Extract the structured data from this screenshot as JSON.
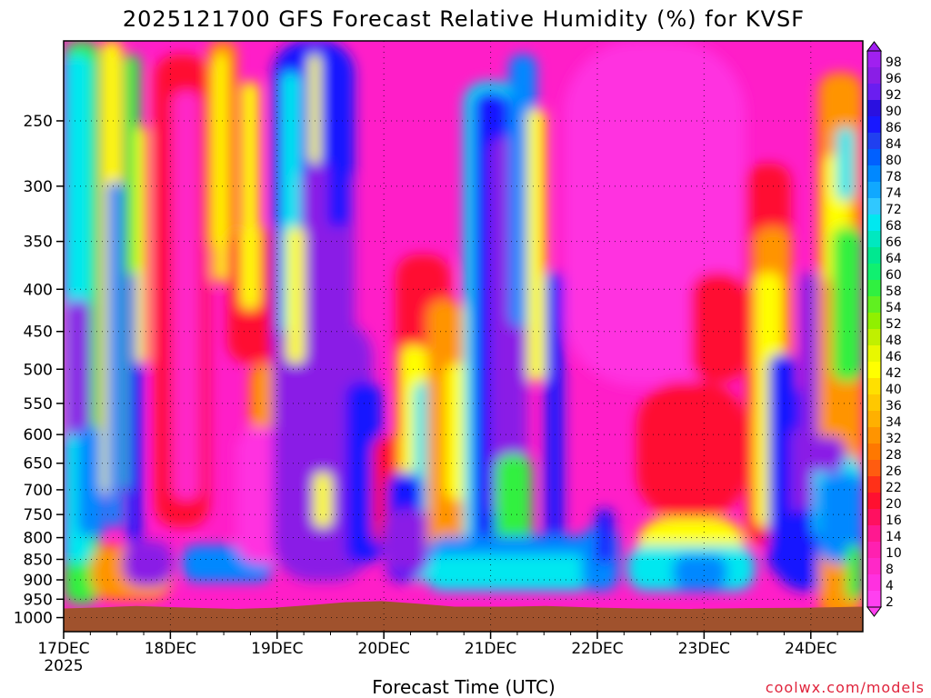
{
  "chart_data": {
    "type": "heatmap",
    "title": "2025121700 GFS Forecast Relative Humidity (%) for KVSF",
    "xlabel": "Forecast Time (UTC)",
    "ylabel": "",
    "x_ticks": [
      "17DEC",
      "18DEC",
      "19DEC",
      "20DEC",
      "21DEC",
      "22DEC",
      "23DEC",
      "24DEC"
    ],
    "x_year": "2025",
    "y_ticks": [
      250,
      300,
      350,
      400,
      450,
      500,
      550,
      600,
      650,
      700,
      750,
      800,
      850,
      900,
      950,
      1000
    ],
    "y_axis": "pressure (hPa), log scale",
    "ylim": [
      1040,
      200
    ],
    "grid": "dotted",
    "colorbar": {
      "placement": "right",
      "labels": [
        98,
        96,
        92,
        90,
        86,
        84,
        80,
        78,
        74,
        72,
        68,
        66,
        64,
        60,
        58,
        54,
        52,
        48,
        46,
        42,
        40,
        36,
        34,
        32,
        28,
        26,
        22,
        20,
        16,
        14,
        10,
        8,
        4,
        2
      ],
      "colors": [
        "#a020f0",
        "#8a1ee6",
        "#6a1ef0",
        "#2a10e0",
        "#1818ff",
        "#2040f0",
        "#0060ff",
        "#0088ff",
        "#10a8ff",
        "#30c8ff",
        "#00e8f0",
        "#00e8c0",
        "#00e890",
        "#10f070",
        "#30f040",
        "#60f020",
        "#90f000",
        "#c0f000",
        "#e8f800",
        "#ffff00",
        "#ffe000",
        "#ffc800",
        "#ffb000",
        "#ff9400",
        "#ff7800",
        "#ff5c10",
        "#ff3018",
        "#ff1030",
        "#ff1060",
        "#ff1890",
        "#ff20b0",
        "#ff28c8",
        "#ff30e0",
        "#ff40f0"
      ]
    },
    "rh_field_description": "relative humidity (%) by pressure level vs forecast time",
    "terrain_color": "#a0522d"
  },
  "source_label": "coolwx.com/models"
}
